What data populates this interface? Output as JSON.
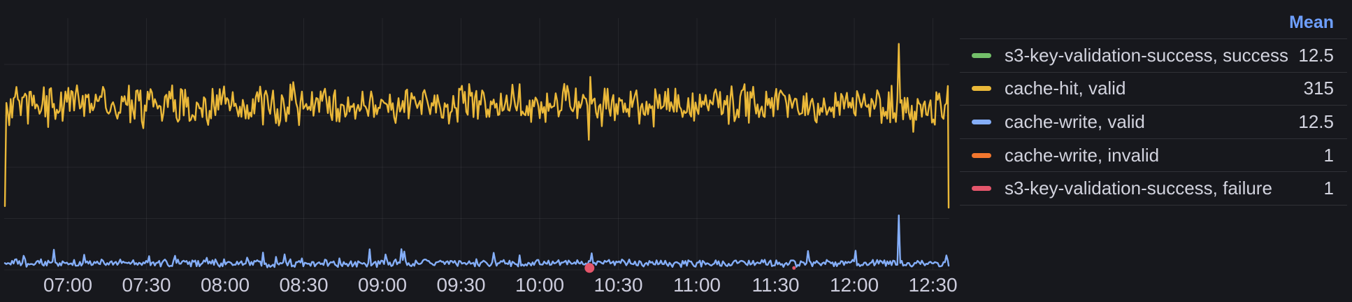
{
  "panel": {
    "background": "#17181d",
    "text_color": "#CCCCDC"
  },
  "legend": {
    "header": {
      "label": "Mean",
      "color": "#6E9FFF"
    },
    "rows": [
      {
        "label": "s3-key-validation-success, success",
        "mean": "12.5",
        "color": "#73BF69"
      },
      {
        "label": "cache-hit, valid",
        "mean": "315",
        "color": "#EAB839"
      },
      {
        "label": "cache-write, valid",
        "mean": "12.5",
        "color": "#84ADF8"
      },
      {
        "label": "cache-write, invalid",
        "mean": "1",
        "color": "#F2762E"
      },
      {
        "label": "s3-key-validation-success, failure",
        "mean": "1",
        "color": "#E4566B"
      }
    ]
  },
  "chart_data": {
    "type": "line",
    "x_axis": "time of day",
    "x_ticks": [
      {
        "minutes": 420,
        "label": "07:00"
      },
      {
        "minutes": 450,
        "label": "07:30"
      },
      {
        "minutes": 480,
        "label": "08:00"
      },
      {
        "minutes": 510,
        "label": "08:30"
      },
      {
        "minutes": 540,
        "label": "09:00"
      },
      {
        "minutes": 570,
        "label": "09:30"
      },
      {
        "minutes": 600,
        "label": "10:00"
      },
      {
        "minutes": 630,
        "label": "10:30"
      },
      {
        "minutes": 660,
        "label": "11:00"
      },
      {
        "minutes": 690,
        "label": "11:30"
      },
      {
        "minutes": 720,
        "label": "12:00"
      },
      {
        "minutes": 750,
        "label": "12:30"
      }
    ],
    "x_range_minutes": [
      396,
      756
    ],
    "ylim": [
      0,
      490
    ],
    "y_gridlines": [
      0,
      100,
      200,
      300,
      400
    ],
    "grid": true,
    "legend_position": "right",
    "legend_stat": "Mean",
    "series": [
      {
        "name": "s3-key-validation-success, success",
        "color": "#73BF69",
        "mean": 12.5,
        "style": "line",
        "note": "identical to cache-write valid, fully covered by it",
        "approx": {
          "base": 13,
          "amp": 5,
          "burst_p": 0.055,
          "burst_amp": 24,
          "burst_bias": "up",
          "seed": 1234,
          "start_value": 13,
          "end_value": 8,
          "clamp": [
            3,
            55
          ],
          "spikes": [
            [
              737,
              106
            ],
            [
              755,
              28
            ]
          ]
        }
      },
      {
        "name": "cache-hit, valid",
        "color": "#EAB839",
        "mean": 315,
        "style": "line",
        "approx": {
          "base": 322,
          "amp": 27,
          "burst_p": 0.1,
          "burst_amp": 26,
          "burst_bias": "both",
          "seed": 99,
          "start_value": 124,
          "end_value": 121,
          "clamp": [
            255,
            385
          ],
          "spikes": [
            [
              619,
              253
            ],
            [
              737,
              440
            ],
            [
              755.5,
              358
            ]
          ]
        }
      },
      {
        "name": "cache-write, valid",
        "color": "#84ADF8",
        "mean": 12.5,
        "style": "line",
        "approx": {
          "base": 13,
          "amp": 5,
          "burst_p": 0.055,
          "burst_amp": 24,
          "burst_bias": "up",
          "seed": 1234,
          "start_value": 13,
          "end_value": 8,
          "clamp": [
            3,
            55
          ],
          "spikes": [
            [
              737,
              106
            ],
            [
              755,
              28
            ]
          ]
        }
      },
      {
        "name": "cache-write, invalid",
        "color": "#F2762E",
        "mean": 1,
        "style": "points",
        "points": [
          {
            "minutes": 619,
            "value": 1,
            "radius": 3.5
          }
        ]
      },
      {
        "name": "s3-key-validation-success, failure",
        "color": "#E4566B",
        "mean": 1,
        "style": "points",
        "points": [
          {
            "minutes": 619,
            "value": 1,
            "radius": 7
          },
          {
            "minutes": 697,
            "value": 1,
            "radius": 2.5
          }
        ]
      }
    ]
  }
}
